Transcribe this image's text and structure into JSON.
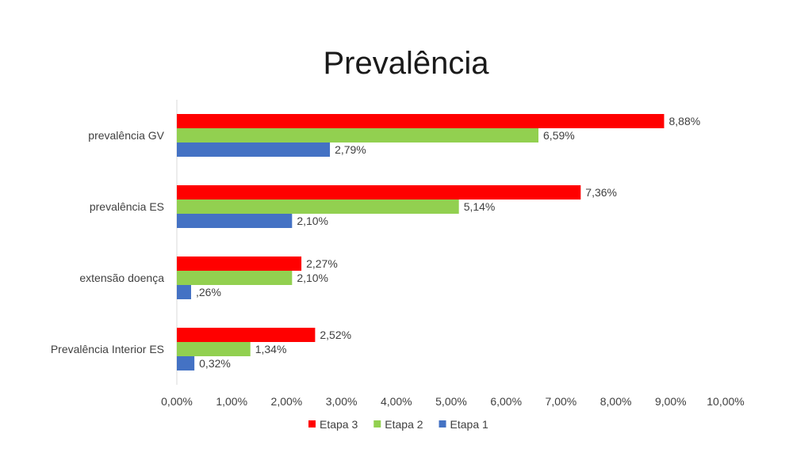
{
  "chart_data": {
    "type": "bar",
    "orientation": "horizontal",
    "title": "Prevalência",
    "xlabel": "",
    "ylabel": "",
    "xlim": [
      0,
      10
    ],
    "x_unit": "%",
    "grid": false,
    "legend_position": "bottom",
    "categories": [
      "prevalência GV",
      "prevalência ES",
      "extensão doença",
      "Prevalência Interior ES"
    ],
    "x_ticks": [
      "0,00%",
      "1,00%",
      "2,00%",
      "3,00%",
      "4,00%",
      "5,00%",
      "6,00%",
      "7,00%",
      "8,00%",
      "9,00%",
      "10,00%"
    ],
    "series": [
      {
        "name": "Etapa 3",
        "color": "#ff0000",
        "values": [
          8.88,
          7.36,
          2.27,
          2.52
        ],
        "labels": [
          "8,88%",
          "7,36%",
          "2,27%",
          "2,52%"
        ]
      },
      {
        "name": "Etapa 2",
        "color": "#92d050",
        "values": [
          6.59,
          5.14,
          2.1,
          1.34
        ],
        "labels": [
          "6,59%",
          "5,14%",
          "2,10%",
          "1,34%"
        ]
      },
      {
        "name": "Etapa 1",
        "color": "#4472c4",
        "values": [
          2.79,
          2.1,
          0.26,
          0.32
        ],
        "labels": [
          "2,79%",
          "2,10%",
          ",26%",
          "0,32%"
        ]
      }
    ]
  }
}
